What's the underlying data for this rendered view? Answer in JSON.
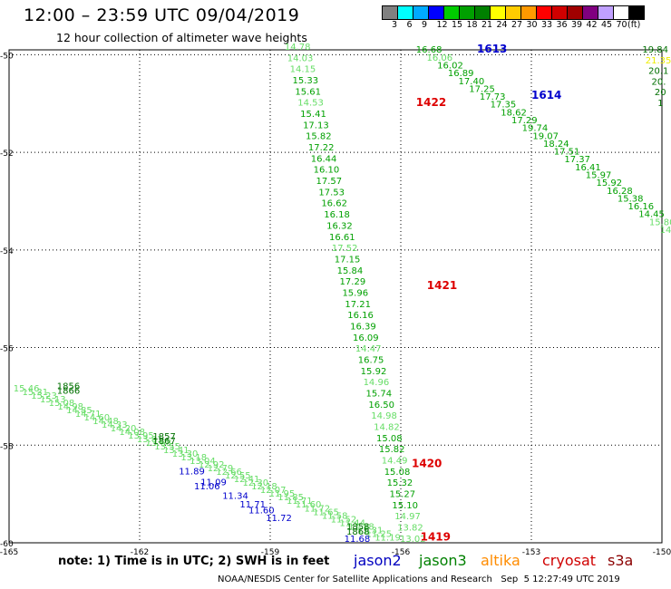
{
  "header": {
    "title": "12:00 – 23:59 UTC 09/04/2019",
    "subtitle": "12 hour collection of altimeter wave heights"
  },
  "legend_scale": {
    "values": [
      "3",
      "6",
      "9",
      "12",
      "15",
      "18",
      "21",
      "24",
      "27",
      "30",
      "33",
      "36",
      "39",
      "42",
      "45",
      "70",
      "(ft)"
    ],
    "colors": [
      "#808080",
      "#00ffff",
      "#00aaff",
      "#0000ff",
      "#00cc00",
      "#00a000",
      "#008000",
      "#ffff00",
      "#ffcc00",
      "#ff9900",
      "#ff0000",
      "#d00000",
      "#a00000",
      "#800080",
      "#c0a0ff",
      "#ffffff",
      "#000000"
    ]
  },
  "axes": {
    "lat_labels": [
      "-50",
      "-52",
      "-54",
      "-56",
      "-58",
      "-60"
    ],
    "lon_labels": [
      "-165",
      "-162",
      "-159",
      "-156",
      "-153",
      "-150"
    ]
  },
  "satellites": [
    {
      "name": "jason2",
      "color": "#0000c0"
    },
    {
      "name": "jason3",
      "color": "#008000"
    },
    {
      "name": "altika",
      "color": "#ff8c00"
    },
    {
      "name": "cryosat",
      "color": "#d00000"
    },
    {
      "name": "s3a",
      "color": "#8b0000"
    }
  ],
  "note": "note: 1) Time is in UTC; 2) SWH is in feet",
  "credit": "NOAA/NESDIS Center for Satellite Applications and Research   Sep  5 12:27:49 UTC 2019",
  "colors": {
    "lt": "#66dd66",
    "md": "#00a000",
    "dk": "#007000",
    "blue": "#0000cc",
    "red": "#dd0000",
    "yellow": "#eeee00"
  },
  "track_main": {
    "values": [
      "14.78",
      "14.03",
      "14.15",
      "15.33",
      "15.61",
      "14.53",
      "15.41",
      "17.13",
      "15.82",
      "17.22",
      "16.44",
      "16.10",
      "17.57",
      "17.53",
      "16.62",
      "16.18",
      "16.32",
      "16.61",
      "17.52",
      "17.15",
      "15.84",
      "17.29",
      "15.96",
      "17.21",
      "16.16",
      "16.39",
      "16.09",
      "14.47",
      "16.75",
      "15.92",
      "14.96",
      "15.74",
      "16.50",
      "14.98",
      "14.82",
      "15.08",
      "15.82",
      "14.49",
      "15.08",
      "15.32",
      "15.27",
      "15.10",
      "14.97",
      "13.82",
      "13.02"
    ],
    "shades": [
      "lt",
      "lt",
      "lt",
      "md",
      "md",
      "lt",
      "md",
      "md",
      "md",
      "md",
      "md",
      "md",
      "md",
      "md",
      "md",
      "md",
      "md",
      "md",
      "lt",
      "md",
      "md",
      "md",
      "md",
      "md",
      "md",
      "md",
      "md",
      "lt",
      "md",
      "md",
      "lt",
      "md",
      "md",
      "lt",
      "lt",
      "md",
      "md",
      "lt",
      "md",
      "md",
      "md",
      "md",
      "lt",
      "lt",
      "lt"
    ]
  },
  "track_main_labels": [
    {
      "text": "1422",
      "lat": -51.05,
      "lon": -155.65,
      "color": "red"
    },
    {
      "text": "1421",
      "lat": -54.8,
      "lon": -155.4,
      "color": "red"
    },
    {
      "text": "1420",
      "lat": -58.45,
      "lon": -155.75,
      "color": "red"
    },
    {
      "text": "1419",
      "lat": -59.95,
      "lon": -155.55,
      "color": "red"
    }
  ],
  "track_ne": {
    "values": [
      "16.68",
      "16.06",
      "16.02",
      "16.89",
      "17.40",
      "17.25",
      "17.73",
      "17.35",
      "18.62",
      "17.29",
      "19.74",
      "19.07",
      "18.24",
      "17.51",
      "17.37",
      "16.41",
      "15.97",
      "15.92",
      "16.28",
      "15.38",
      "16.16",
      "14.45",
      "15.80",
      "14.40"
    ],
    "shades": [
      "md",
      "lt",
      "md",
      "md",
      "md",
      "md",
      "md",
      "md",
      "md",
      "md",
      "md",
      "md",
      "md",
      "md",
      "md",
      "md",
      "md",
      "md",
      "md",
      "md",
      "md",
      "md",
      "lt",
      "lt"
    ]
  },
  "track_ne_labels": [
    {
      "text": "1613",
      "lat": -49.96,
      "lon": -154.25,
      "color": "blue"
    },
    {
      "text": "1614",
      "lat": -50.9,
      "lon": -153.0,
      "color": "blue"
    }
  ],
  "track_far": {
    "values": [
      "19.84",
      "21.35",
      "20.1",
      "20.",
      "20",
      "1"
    ],
    "shades": [
      "dk",
      "yellow",
      "dk",
      "dk",
      "dk",
      "dk"
    ]
  },
  "track_sw": {
    "values": [
      "15.46",
      "15.31",
      "15.23",
      "15.13",
      "15.08",
      "14.98",
      "14.85",
      "14.71",
      "14.60",
      "14.48",
      "14.33",
      "14.20",
      "14.08",
      "13.95",
      "13.81",
      "13.68",
      "13.55",
      "13.41",
      "13.30",
      "13.18",
      "13.04",
      "12.92",
      "12.79",
      "12.66",
      "12.55",
      "12.41",
      "12.30",
      "12.18",
      "12.07",
      "11.95",
      "11.85",
      "11.71",
      "11.60",
      "11.72",
      "11.65",
      "11.58",
      "11.52",
      "11.44",
      "11.38",
      "11.31",
      "11.25",
      "11.19"
    ],
    "shades": [
      "lt",
      "lt",
      "lt",
      "lt",
      "lt",
      "lt",
      "lt",
      "lt",
      "lt",
      "lt",
      "lt",
      "lt",
      "lt",
      "lt",
      "lt",
      "lt",
      "lt",
      "lt",
      "lt",
      "lt",
      "lt",
      "lt",
      "lt",
      "lt",
      "lt",
      "lt",
      "lt",
      "lt",
      "lt",
      "lt",
      "lt",
      "lt",
      "lt",
      "lt",
      "lt",
      "lt",
      "lt",
      "lt",
      "lt",
      "lt",
      "lt",
      "lt"
    ]
  },
  "track_sw_labels": [
    {
      "text": "11.89",
      "lat": -58.6,
      "lon": -161.1,
      "color": "blue"
    },
    {
      "text": "11.09",
      "lat": -58.82,
      "lon": -160.6,
      "color": "blue"
    },
    {
      "text": "11.06",
      "lat": -58.9,
      "lon": -160.75,
      "color": "blue"
    },
    {
      "text": "11.34",
      "lat": -59.1,
      "lon": -160.1,
      "color": "blue"
    },
    {
      "text": "11.71",
      "lat": -59.28,
      "lon": -159.7,
      "color": "blue"
    },
    {
      "text": "11.60",
      "lat": -59.4,
      "lon": -159.5,
      "color": "blue"
    },
    {
      "text": "11.72",
      "lat": -59.55,
      "lon": -159.1,
      "color": "blue"
    },
    {
      "text": "11.68",
      "lat": -59.98,
      "lon": -157.3,
      "color": "blue"
    },
    {
      "text": "1856",
      "lat": -56.85,
      "lon": -163.9,
      "color": "dk"
    },
    {
      "text": "1866",
      "lat": -56.95,
      "lon": -163.9,
      "color": "dk"
    },
    {
      "text": "1857",
      "lat": -57.88,
      "lon": -161.7,
      "color": "dk"
    },
    {
      "text": "1867",
      "lat": -57.98,
      "lon": -161.7,
      "color": "dk"
    },
    {
      "text": "1858",
      "lat": -59.73,
      "lon": -157.25,
      "color": "dk"
    },
    {
      "text": "1868",
      "lat": -59.83,
      "lon": -157.25,
      "color": "dk"
    }
  ]
}
